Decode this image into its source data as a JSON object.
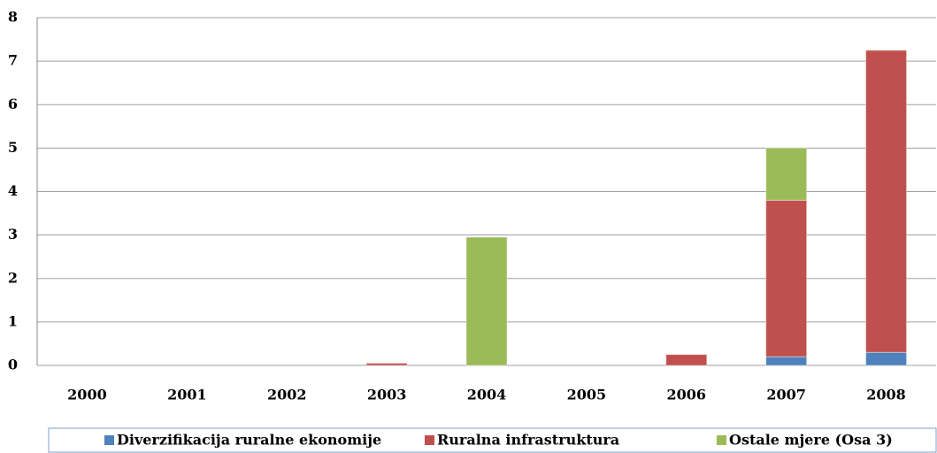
{
  "chart_data": {
    "type": "stacked_bar",
    "categories": [
      "2000",
      "2001",
      "2002",
      "2003",
      "2004",
      "2005",
      "2006",
      "2007",
      "2008"
    ],
    "series": [
      {
        "name": "Diverzifikacija ruralne ekonomije",
        "color": "#4f81bd",
        "values": [
          0,
          0,
          0,
          0,
          0,
          0,
          0,
          0.2,
          0.3
        ]
      },
      {
        "name": "Ruralna infrastruktura",
        "color": "#c0504d",
        "values": [
          0,
          0,
          0,
          0.05,
          0,
          0,
          0.25,
          3.6,
          6.95
        ]
      },
      {
        "name": "Ostale mjere (Osa 3)",
        "color": "#9bbb59",
        "values": [
          0,
          0,
          0,
          0,
          2.95,
          0,
          0,
          1.2,
          0
        ]
      }
    ],
    "ylim": [
      0,
      8
    ],
    "yticks": [
      0,
      1,
      2,
      3,
      4,
      5,
      6,
      7,
      8
    ],
    "grid": true,
    "legend": "bottom"
  }
}
